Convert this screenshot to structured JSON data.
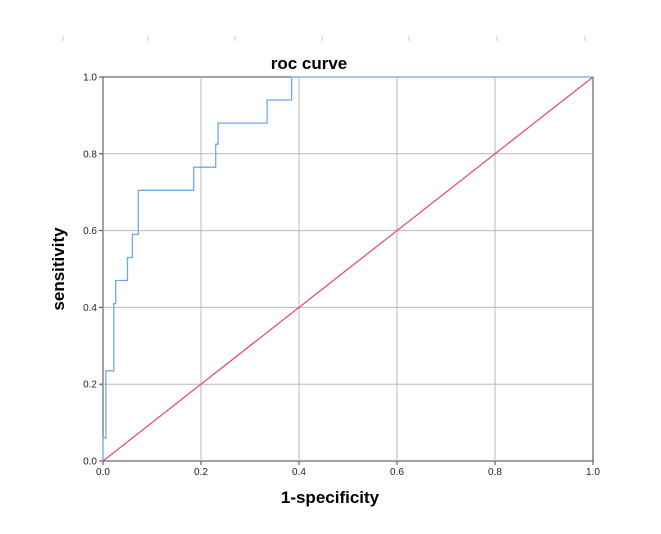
{
  "chart_data": {
    "type": "line",
    "title": "roc curve",
    "xlabel": "1-specificity",
    "ylabel": "sensitivity",
    "xlim": [
      0,
      1
    ],
    "ylim": [
      0,
      1
    ],
    "xticks": [
      "0.0",
      "0.2",
      "0.4",
      "0.6",
      "0.8",
      "1.0"
    ],
    "yticks": [
      "0.0",
      "0.2",
      "0.4",
      "0.6",
      "0.8",
      "1.0"
    ],
    "grid": true,
    "series": [
      {
        "color": "#6fa8e8",
        "step": true,
        "x": [
          0.0,
          0.0,
          0.006,
          0.006,
          0.006,
          0.022,
          0.022,
          0.026,
          0.026,
          0.05,
          0.05,
          0.06,
          0.06,
          0.072,
          0.072,
          0.185,
          0.185,
          0.23,
          0.23,
          0.235,
          0.235,
          0.335,
          0.335,
          0.385,
          0.385,
          1.0
        ],
        "y": [
          0.0,
          0.06,
          0.06,
          0.235,
          0.235,
          0.235,
          0.41,
          0.41,
          0.47,
          0.47,
          0.53,
          0.53,
          0.59,
          0.59,
          0.705,
          0.705,
          0.765,
          0.765,
          0.825,
          0.825,
          0.88,
          0.88,
          0.94,
          0.94,
          1.0,
          1.0
        ]
      },
      {
        "color": "#e8506e",
        "x": [
          0,
          1
        ],
        "y": [
          0,
          1
        ]
      }
    ]
  }
}
